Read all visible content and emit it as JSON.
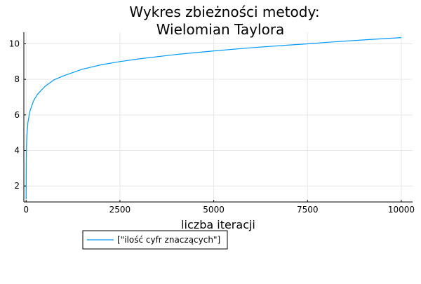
{
  "chart_data": {
    "type": "line",
    "title_line1": "Wykres zbieżności metody:",
    "title_line2": "Wielomian Taylora",
    "xlabel": "liczba iteracji",
    "ylabel": "",
    "xlim": [
      -60,
      10300
    ],
    "ylim": [
      1.1,
      10.65
    ],
    "xticks": [
      0,
      2500,
      5000,
      7500,
      10000
    ],
    "xtick_labels": [
      "0",
      "2500",
      "5000",
      "7500",
      "10000"
    ],
    "yticks": [
      2,
      4,
      6,
      8,
      10
    ],
    "ytick_labels": [
      "2",
      "4",
      "6",
      "8",
      "10"
    ],
    "grid": true,
    "legend_position": "bottom-left, outside plot",
    "series": [
      {
        "name": "[\"ilość cyfr znaczących\"]",
        "color": "#009af9",
        "x": [
          1,
          5,
          10,
          20,
          50,
          100,
          200,
          300,
          500,
          750,
          1000,
          1500,
          2000,
          2500,
          3000,
          4000,
          5000,
          6000,
          7000,
          7500,
          8000,
          9000,
          10000
        ],
        "y": [
          1.25,
          3.4,
          4.15,
          4.8,
          5.6,
          6.2,
          6.8,
          7.15,
          7.6,
          7.98,
          8.2,
          8.57,
          8.82,
          9.0,
          9.15,
          9.4,
          9.6,
          9.78,
          9.93,
          10.0,
          10.08,
          10.22,
          10.35
        ]
      }
    ]
  }
}
